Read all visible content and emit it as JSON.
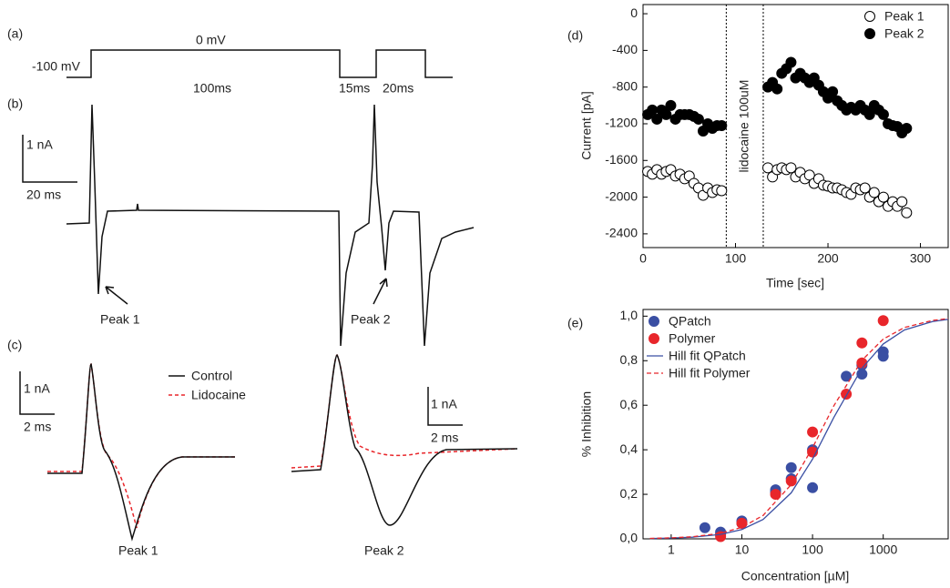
{
  "panels": {
    "a": {
      "label": "(a)",
      "holding": "-100 mV",
      "step": "0 mV",
      "durations": [
        "100ms",
        "15ms",
        "20ms"
      ]
    },
    "b": {
      "label": "(b)",
      "scale_current": "1 nA",
      "scale_time": "20 ms",
      "peaks": [
        "Peak 1",
        "Peak 2"
      ]
    },
    "c": {
      "label": "(c)",
      "legend": [
        "Control",
        "Lidocaine"
      ],
      "scales": [
        {
          "current": "1 nA",
          "time": "2 ms"
        },
        {
          "current": "1 nA",
          "time": "2 ms"
        }
      ],
      "peaks": [
        "Peak 1",
        "Peak 2"
      ]
    }
  },
  "chart_data": [
    {
      "type": "scatter",
      "panel_label": "(d)",
      "ylabel": "Current [pA]",
      "xlabel": "Time [sec]",
      "x": [
        5,
        10,
        15,
        20,
        25,
        30,
        35,
        40,
        45,
        50,
        55,
        60,
        65,
        70,
        75,
        80,
        85,
        135,
        140,
        145,
        150,
        155,
        160,
        165,
        170,
        175,
        180,
        185,
        190,
        195,
        200,
        205,
        210,
        215,
        220,
        225,
        230,
        235,
        240,
        245,
        250,
        255,
        260,
        265,
        270,
        275,
        280,
        285
      ],
      "series": [
        {
          "name": "Peak 1",
          "marker": "open",
          "color": "#000000",
          "values": [
            -1720,
            -1750,
            -1700,
            -1750,
            -1720,
            -1700,
            -1770,
            -1750,
            -1800,
            -1770,
            -1850,
            -1900,
            -1980,
            -1900,
            -1950,
            -1920,
            -1930,
            -1680,
            -1780,
            -1700,
            -1680,
            -1700,
            -1680,
            -1780,
            -1730,
            -1800,
            -1760,
            -1850,
            -1800,
            -1870,
            -1880,
            -1900,
            -1900,
            -1920,
            -1950,
            -1970,
            -1900,
            -1920,
            -1900,
            -2000,
            -1950,
            -2050,
            -2000,
            -2100,
            -2050,
            -2100,
            -2050,
            -2170
          ]
        },
        {
          "name": "Peak 2",
          "marker": "filled",
          "color": "#000000",
          "values": [
            -1100,
            -1050,
            -1150,
            -1050,
            -1100,
            -1000,
            -1150,
            -1100,
            -1100,
            -1100,
            -1120,
            -1150,
            -1280,
            -1200,
            -1250,
            -1220,
            -1220,
            -800,
            -750,
            -820,
            -650,
            -600,
            -530,
            -700,
            -650,
            -700,
            -750,
            -700,
            -780,
            -850,
            -920,
            -850,
            -950,
            -1000,
            -1050,
            -1020,
            -1050,
            -1000,
            -1050,
            -1100,
            -1000,
            -1050,
            -1100,
            -1200,
            -1220,
            -1230,
            -1300,
            -1250
          ]
        }
      ],
      "vlines": [
        90,
        130
      ],
      "annotation": "lidocaine 100uM",
      "xlim": [
        0,
        330
      ],
      "ylim": [
        -2550,
        100
      ],
      "xticks": [
        0,
        100,
        200,
        300
      ],
      "yticks": [
        -2400,
        -2000,
        -1600,
        -1200,
        -800,
        -400,
        0
      ],
      "legend": "upper right"
    },
    {
      "type": "scatter",
      "panel_label": "(e)",
      "ylabel": "% Inhibition",
      "xlabel": "Concentration [µM]",
      "xscale": "log",
      "series": [
        {
          "name": "QPatch",
          "kind": "scatter",
          "color": "#3a4fa3",
          "x": [
            3,
            5,
            5,
            10,
            10,
            30,
            30,
            50,
            50,
            100,
            100,
            300,
            500,
            500,
            1000,
            1000
          ],
          "values": [
            0.05,
            0.03,
            0.02,
            0.08,
            0.07,
            0.22,
            0.21,
            0.32,
            0.27,
            0.4,
            0.23,
            0.73,
            0.78,
            0.74,
            0.84,
            0.82
          ]
        },
        {
          "name": "Polymer",
          "kind": "scatter",
          "color": "#e8262b",
          "x": [
            5,
            10,
            30,
            50,
            100,
            100,
            300,
            500,
            500,
            1000
          ],
          "values": [
            0.01,
            0.07,
            0.2,
            0.26,
            0.48,
            0.39,
            0.65,
            0.88,
            0.79,
            0.98
          ]
        },
        {
          "name": "Hill fit QPatch",
          "kind": "line",
          "color": "#3a4fa3",
          "x": [
            0.5,
            1,
            2,
            5,
            10,
            20,
            50,
            100,
            200,
            500,
            1000,
            2000,
            5000,
            8300
          ],
          "values": [
            0.0016,
            0.0035,
            0.0075,
            0.02,
            0.042,
            0.087,
            0.207,
            0.358,
            0.545,
            0.766,
            0.875,
            0.938,
            0.976,
            0.986
          ]
        },
        {
          "name": "Hill fit Polymer",
          "kind": "line",
          "style": "dashed",
          "color": "#e8262b",
          "x": [
            0.5,
            1,
            2,
            5,
            10,
            20,
            50,
            100,
            200,
            500,
            1000,
            2000,
            5000,
            8300
          ],
          "values": [
            0.002,
            0.0043,
            0.0093,
            0.025,
            0.052,
            0.105,
            0.244,
            0.409,
            0.597,
            0.802,
            0.897,
            0.949,
            0.981,
            0.989
          ]
        }
      ],
      "xlim": [
        0.4,
        8300
      ],
      "ylim": [
        0,
        1.03
      ],
      "xticks": [
        1,
        10,
        100,
        1000
      ],
      "yticks": [
        {
          "value": 0,
          "label": "0,0"
        },
        {
          "value": 0.2,
          "label": "0,2"
        },
        {
          "value": 0.4,
          "label": "0,4"
        },
        {
          "value": 0.6,
          "label": "0,6"
        },
        {
          "value": 0.8,
          "label": "0,8"
        },
        {
          "value": 1,
          "label": "1,0"
        }
      ],
      "legend": "upper left"
    }
  ]
}
